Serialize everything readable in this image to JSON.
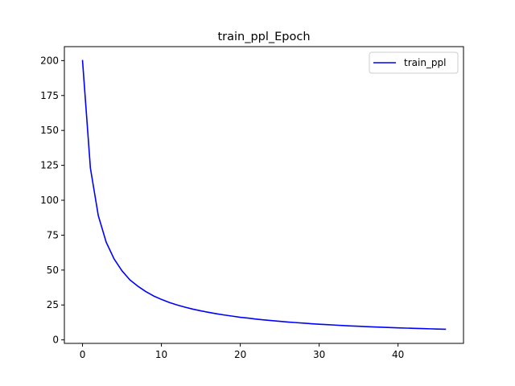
{
  "chart_data": {
    "type": "line",
    "title": "train_ppl_Epoch",
    "xlabel": "",
    "ylabel": "",
    "xlim": [
      -2.3,
      48.3
    ],
    "ylim": [
      -2.5,
      210
    ],
    "x_ticks": [
      0,
      10,
      20,
      30,
      40
    ],
    "y_ticks": [
      0,
      25,
      50,
      75,
      100,
      125,
      150,
      175,
      200
    ],
    "grid": false,
    "legend_position": "top-right",
    "series": [
      {
        "name": "train_ppl",
        "color": "#0000ff",
        "x": [
          0,
          1,
          2,
          3,
          4,
          5,
          6,
          7,
          8,
          9,
          10,
          11,
          12,
          13,
          14,
          15,
          16,
          17,
          18,
          19,
          20,
          21,
          22,
          23,
          24,
          25,
          26,
          27,
          28,
          29,
          30,
          31,
          32,
          33,
          34,
          35,
          36,
          37,
          38,
          39,
          40,
          41,
          42,
          43,
          44,
          45,
          46
        ],
        "values": [
          200,
          123,
          89,
          70,
          58,
          49.5,
          43,
          38.5,
          34.7,
          31.5,
          29,
          26.8,
          25,
          23.4,
          22,
          20.8,
          19.7,
          18.7,
          17.8,
          17,
          16.2,
          15.6,
          14.9,
          14.3,
          13.8,
          13.3,
          12.8,
          12.4,
          12,
          11.6,
          11.2,
          10.9,
          10.6,
          10.3,
          10,
          9.75,
          9.5,
          9.27,
          9.05,
          8.84,
          8.64,
          8.45,
          8.27,
          8.1,
          7.94,
          7.78,
          7.63
        ]
      }
    ]
  }
}
